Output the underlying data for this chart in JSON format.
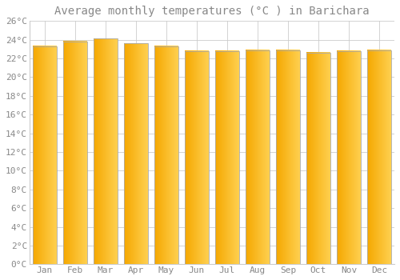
{
  "title": "Average monthly temperatures (°C ) in Barichara",
  "months": [
    "Jan",
    "Feb",
    "Mar",
    "Apr",
    "May",
    "Jun",
    "Jul",
    "Aug",
    "Sep",
    "Oct",
    "Nov",
    "Dec"
  ],
  "temperatures": [
    23.3,
    23.8,
    24.1,
    23.6,
    23.3,
    22.8,
    22.8,
    22.9,
    22.9,
    22.6,
    22.8,
    22.9
  ],
  "bar_color_left": "#F5A800",
  "bar_color_right": "#FFD050",
  "bar_edge_color": "#AAAAAA",
  "background_color": "#FFFFFF",
  "grid_color": "#CCCCCC",
  "text_color": "#888888",
  "ylim": [
    0,
    26
  ],
  "ytick_step": 2,
  "title_fontsize": 10,
  "tick_fontsize": 8,
  "font_family": "monospace"
}
